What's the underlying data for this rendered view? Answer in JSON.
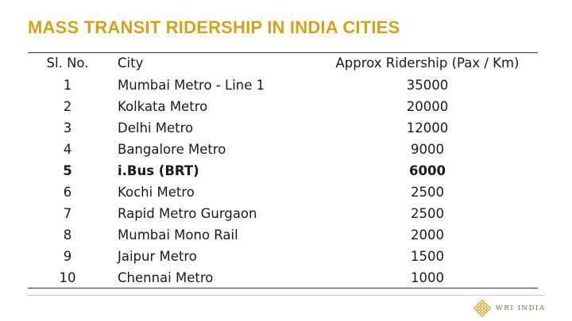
{
  "title": "MASS TRANSIT RIDERSHIP IN INDIA CITIES",
  "table": {
    "headers": [
      "Sl. No.",
      "City",
      "Approx Ridership (Pax / Km)"
    ],
    "rows": [
      {
        "no": "1",
        "city": "Mumbai Metro - Line 1",
        "ridership": "35000",
        "bold": false
      },
      {
        "no": "2",
        "city": "Kolkata Metro",
        "ridership": "20000",
        "bold": false
      },
      {
        "no": "3",
        "city": "Delhi Metro",
        "ridership": "12000",
        "bold": false
      },
      {
        "no": "4",
        "city": "Bangalore Metro",
        "ridership": "9000",
        "bold": false
      },
      {
        "no": "5",
        "city": "i.Bus (BRT)",
        "ridership": "6000",
        "bold": true
      },
      {
        "no": "6",
        "city": "Kochi Metro",
        "ridership": "2500",
        "bold": false
      },
      {
        "no": "7",
        "city": "Rapid Metro Gurgaon",
        "ridership": "2500",
        "bold": false
      },
      {
        "no": "8",
        "city": "Mumbai Mono Rail",
        "ridership": "2000",
        "bold": false
      },
      {
        "no": "9",
        "city": "Jaipur Metro",
        "ridership": "1500",
        "bold": false
      },
      {
        "no": "10",
        "city": "Chennai Metro",
        "ridership": "1000",
        "bold": false
      }
    ]
  },
  "footer": {
    "logo_text": "WRI INDIA",
    "logo_icon": "wri-lattice-icon",
    "logo_color": "#d4a21a"
  }
}
